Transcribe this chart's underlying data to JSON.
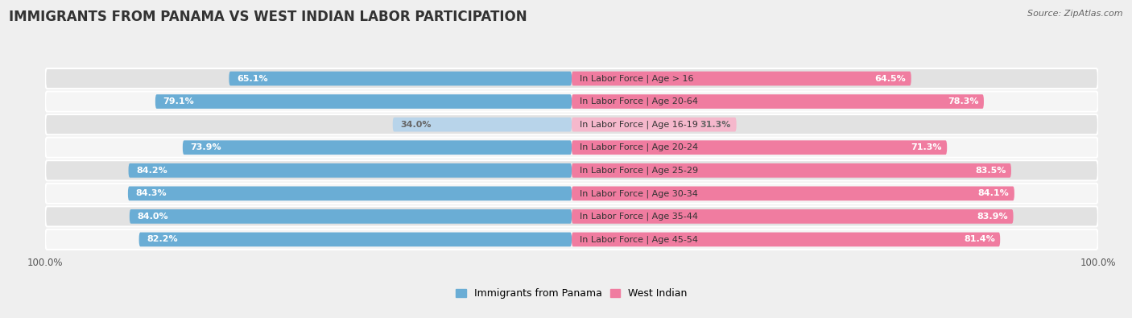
{
  "title": "IMMIGRANTS FROM PANAMA VS WEST INDIAN LABOR PARTICIPATION",
  "source": "Source: ZipAtlas.com",
  "categories": [
    "In Labor Force | Age > 16",
    "In Labor Force | Age 20-64",
    "In Labor Force | Age 16-19",
    "In Labor Force | Age 20-24",
    "In Labor Force | Age 25-29",
    "In Labor Force | Age 30-34",
    "In Labor Force | Age 35-44",
    "In Labor Force | Age 45-54"
  ],
  "panama_values": [
    65.1,
    79.1,
    34.0,
    73.9,
    84.2,
    84.3,
    84.0,
    82.2
  ],
  "westindian_values": [
    64.5,
    78.3,
    31.3,
    71.3,
    83.5,
    84.1,
    83.9,
    81.4
  ],
  "panama_color": "#6aadd5",
  "panama_color_light": "#b8d4ea",
  "westindian_color": "#f07ca0",
  "westindian_color_light": "#f5b8cc",
  "background_color": "#efefef",
  "row_bg_even": "#e2e2e2",
  "row_bg_odd": "#f5f5f5",
  "title_fontsize": 12,
  "label_fontsize": 8,
  "value_fontsize": 8,
  "legend_fontsize": 9,
  "legend_label_panama": "Immigrants from Panama",
  "legend_label_wi": "West Indian"
}
